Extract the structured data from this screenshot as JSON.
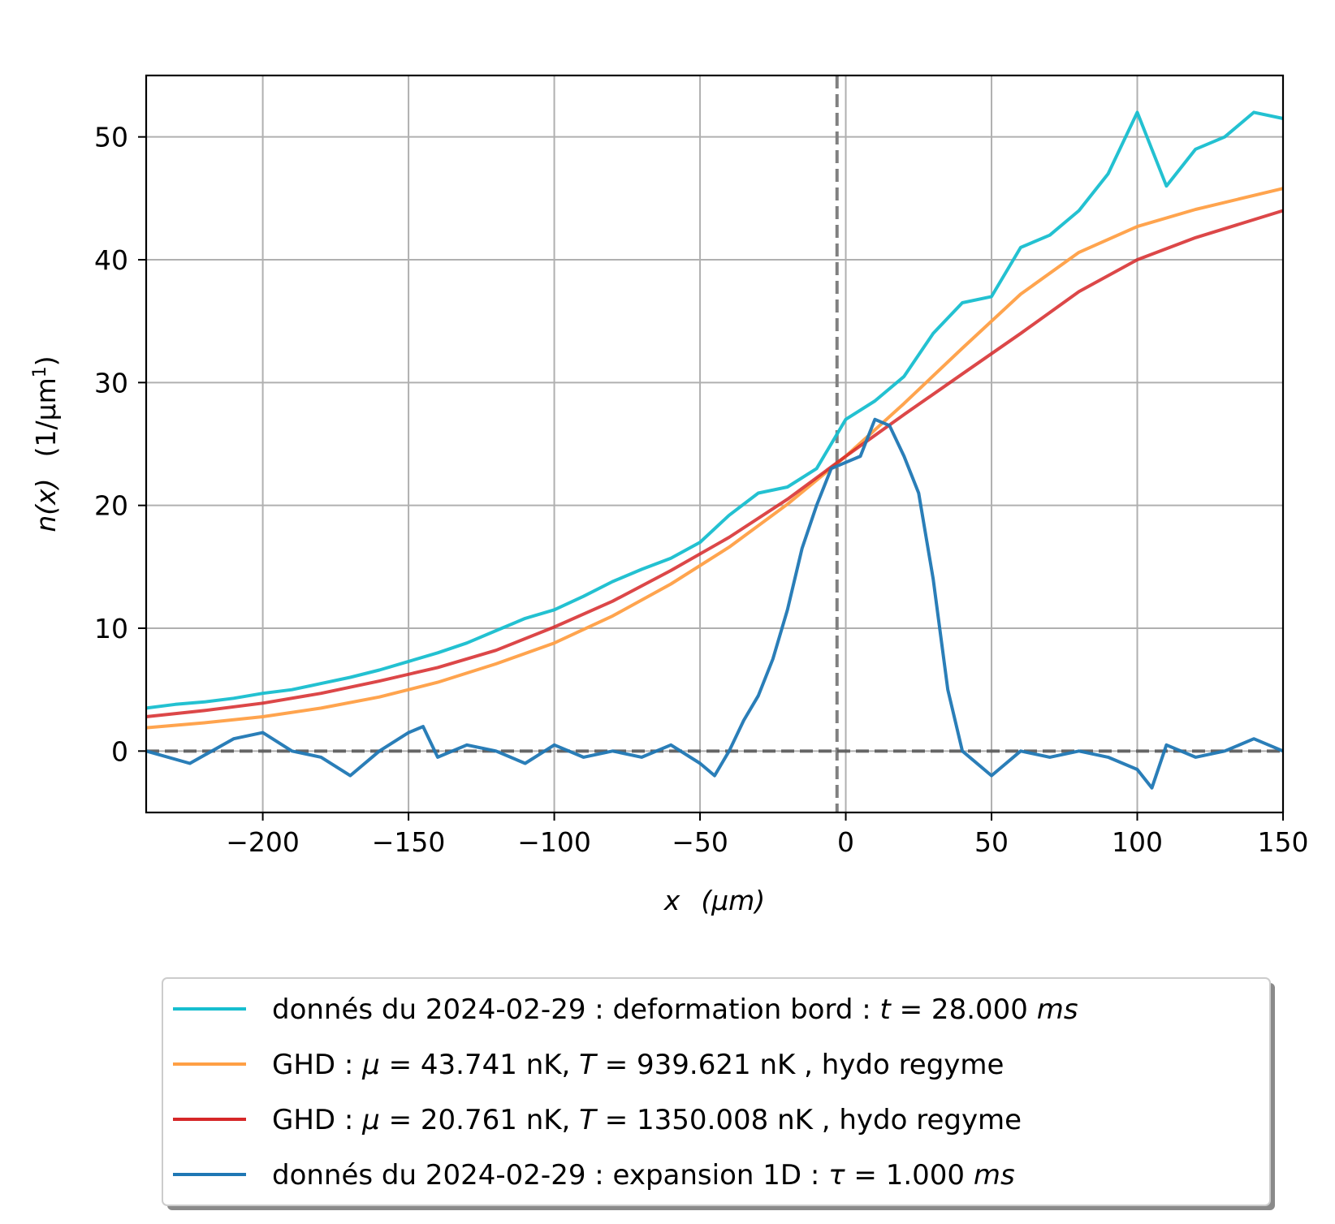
{
  "chart_data": {
    "type": "line",
    "xlabel_var": "x",
    "xlabel_unit": "(μm)",
    "ylabel_var": "n(x)",
    "ylabel_unit": "(1/μm",
    "ylabel_unit_sup": "1",
    "ylabel_unit_close": ")",
    "xlim": [
      -240,
      150
    ],
    "ylim": [
      -5,
      55
    ],
    "xticks": [
      -200,
      -150,
      -100,
      -50,
      0,
      50,
      100,
      150
    ],
    "xtick_labels": [
      "−200",
      "−150",
      "−100",
      "−50",
      "0",
      "50",
      "100",
      "150"
    ],
    "yticks": [
      0,
      10,
      20,
      30,
      40,
      50
    ],
    "ytick_labels": [
      "0",
      "10",
      "20",
      "30",
      "40",
      "50"
    ],
    "grid": true,
    "legend_placement": "below-center",
    "reference_lines": [
      {
        "orientation": "vertical",
        "value": -3,
        "style": "dashed",
        "color": "#808080"
      },
      {
        "orientation": "horizontal",
        "value": 0,
        "style": "dashed",
        "color": "#555555"
      }
    ],
    "series": [
      {
        "key": "cyan",
        "color": "#17becf",
        "legend_parts": [
          {
            "t": "donnés du 2024-02-29 : deformation bord : "
          },
          {
            "t": "t",
            "i": true
          },
          {
            "t": " = 28.000 "
          },
          {
            "t": "ms",
            "i": true
          }
        ],
        "x": [
          -240,
          -230,
          -220,
          -210,
          -200,
          -190,
          -180,
          -170,
          -160,
          -150,
          -140,
          -130,
          -120,
          -110,
          -100,
          -90,
          -80,
          -70,
          -60,
          -50,
          -40,
          -30,
          -20,
          -10,
          0,
          10,
          20,
          30,
          40,
          50,
          60,
          70,
          80,
          90,
          100,
          110,
          120,
          130,
          140,
          150
        ],
        "y": [
          3.5,
          3.8,
          4.0,
          4.3,
          4.7,
          5.0,
          5.5,
          6.0,
          6.6,
          7.3,
          8.0,
          8.8,
          9.8,
          10.8,
          11.5,
          12.6,
          13.8,
          14.8,
          15.7,
          17.0,
          19.2,
          21.0,
          21.5,
          23.0,
          27.0,
          28.5,
          30.5,
          34.0,
          36.5,
          37.0,
          41.0,
          42.0,
          44.0,
          47.0,
          52.0,
          46.0,
          49.0,
          50.0,
          52.0,
          51.5
        ]
      },
      {
        "key": "orange",
        "color": "#ff9f45",
        "legend_parts": [
          {
            "t": "GHD : "
          },
          {
            "t": "μ",
            "i": true
          },
          {
            "t": " = 43.741 nK, "
          },
          {
            "t": "T",
            "i": true
          },
          {
            "t": " = 939.621 nK , hydo regyme"
          }
        ],
        "x": [
          -240,
          -220,
          -200,
          -180,
          -160,
          -140,
          -120,
          -100,
          -80,
          -60,
          -40,
          -20,
          0,
          20,
          40,
          60,
          80,
          100,
          120,
          150
        ],
        "y": [
          1.9,
          2.3,
          2.8,
          3.5,
          4.4,
          5.6,
          7.1,
          8.8,
          11.0,
          13.6,
          16.6,
          20.1,
          24.0,
          28.3,
          32.8,
          37.2,
          40.6,
          42.7,
          44.1,
          45.8
        ]
      },
      {
        "key": "red",
        "color": "#d62728",
        "legend_parts": [
          {
            "t": "GHD : "
          },
          {
            "t": "μ",
            "i": true
          },
          {
            "t": " = 20.761 nK, "
          },
          {
            "t": "T",
            "i": true
          },
          {
            "t": " = 1350.008 nK , hydo regyme"
          }
        ],
        "x": [
          -240,
          -220,
          -200,
          -180,
          -160,
          -140,
          -120,
          -100,
          -80,
          -60,
          -40,
          -20,
          0,
          20,
          40,
          60,
          80,
          100,
          120,
          150
        ],
        "y": [
          2.8,
          3.3,
          3.9,
          4.7,
          5.7,
          6.8,
          8.2,
          10.1,
          12.2,
          14.7,
          17.4,
          20.5,
          24.0,
          27.4,
          30.7,
          34.0,
          37.4,
          40.0,
          41.8,
          44.0
        ]
      },
      {
        "key": "blue",
        "color": "#1f77b4",
        "legend_parts": [
          {
            "t": "donnés du 2024-02-29 : expansion 1D : "
          },
          {
            "t": "τ",
            "i": true
          },
          {
            "t": " = 1.000 "
          },
          {
            "t": "ms",
            "i": true
          }
        ],
        "x": [
          -240,
          -225,
          -210,
          -200,
          -190,
          -180,
          -170,
          -160,
          -150,
          -145,
          -140,
          -130,
          -120,
          -110,
          -100,
          -90,
          -80,
          -70,
          -60,
          -50,
          -45,
          -40,
          -35,
          -30,
          -25,
          -20,
          -15,
          -10,
          -5,
          0,
          5,
          10,
          15,
          20,
          25,
          30,
          35,
          40,
          50,
          60,
          70,
          80,
          90,
          100,
          105,
          110,
          120,
          130,
          140,
          150
        ],
        "y": [
          0.0,
          -1.0,
          1.0,
          1.5,
          0.0,
          -0.5,
          -2.0,
          0.0,
          1.5,
          2.0,
          -0.5,
          0.5,
          0.0,
          -1.0,
          0.5,
          -0.5,
          0.0,
          -0.5,
          0.5,
          -1.0,
          -2.0,
          0.0,
          2.5,
          4.5,
          7.5,
          11.5,
          16.5,
          20.0,
          23.0,
          23.5,
          24.0,
          27.0,
          26.5,
          24.0,
          21.0,
          14.0,
          5.0,
          0.0,
          -2.0,
          0.0,
          -0.5,
          0.0,
          -0.5,
          -1.5,
          -3.0,
          0.5,
          -0.5,
          0.0,
          1.0,
          0.0
        ]
      }
    ]
  }
}
